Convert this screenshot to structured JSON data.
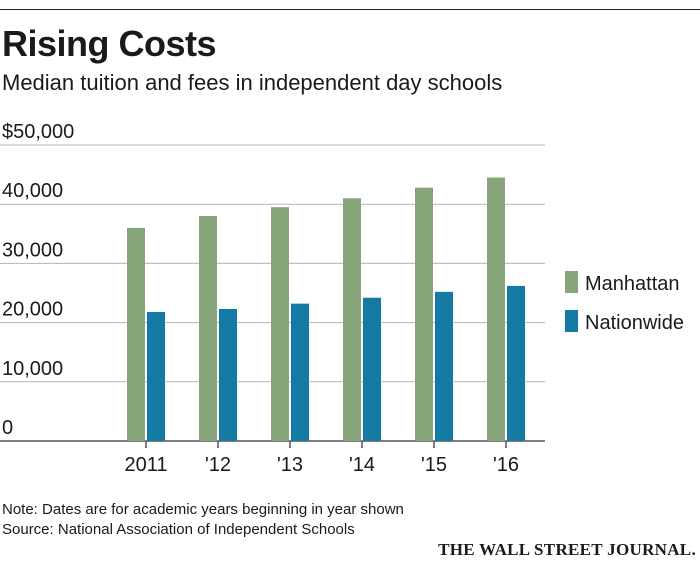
{
  "title": "Rising Costs",
  "subtitle": "Median tuition and fees in independent day schools",
  "note": "Note: Dates are for academic years beginning in year shown",
  "source": "Source: National Association of Independent Schools",
  "publisher": "THE WALL STREET JOURNAL.",
  "colors": {
    "manhattan": "#87a47b",
    "nationwide": "#1479a3",
    "grid": "#b5b5b5",
    "baseline": "#555555"
  },
  "chart_data": {
    "type": "bar",
    "title": "Rising Costs",
    "subtitle": "Median tuition and fees in independent day schools",
    "xlabel": "",
    "ylabel": "",
    "categories": [
      "2011",
      "'12",
      "'13",
      "'14",
      "'15",
      "'16"
    ],
    "ylim": [
      0,
      50000
    ],
    "yticks": [
      0,
      10000,
      20000,
      30000,
      40000,
      50000
    ],
    "ytick_labels": [
      "0",
      "10,000",
      "20,000",
      "30,000",
      "40,000",
      "$50,000"
    ],
    "grid": true,
    "legend_position": "right",
    "series": [
      {
        "name": "Manhattan",
        "color": "#87a47b",
        "values": [
          36000,
          38000,
          39500,
          41000,
          42800,
          44500
        ]
      },
      {
        "name": "Nationwide",
        "color": "#1479a3",
        "values": [
          21800,
          22300,
          23200,
          24200,
          25200,
          26200
        ]
      }
    ]
  }
}
